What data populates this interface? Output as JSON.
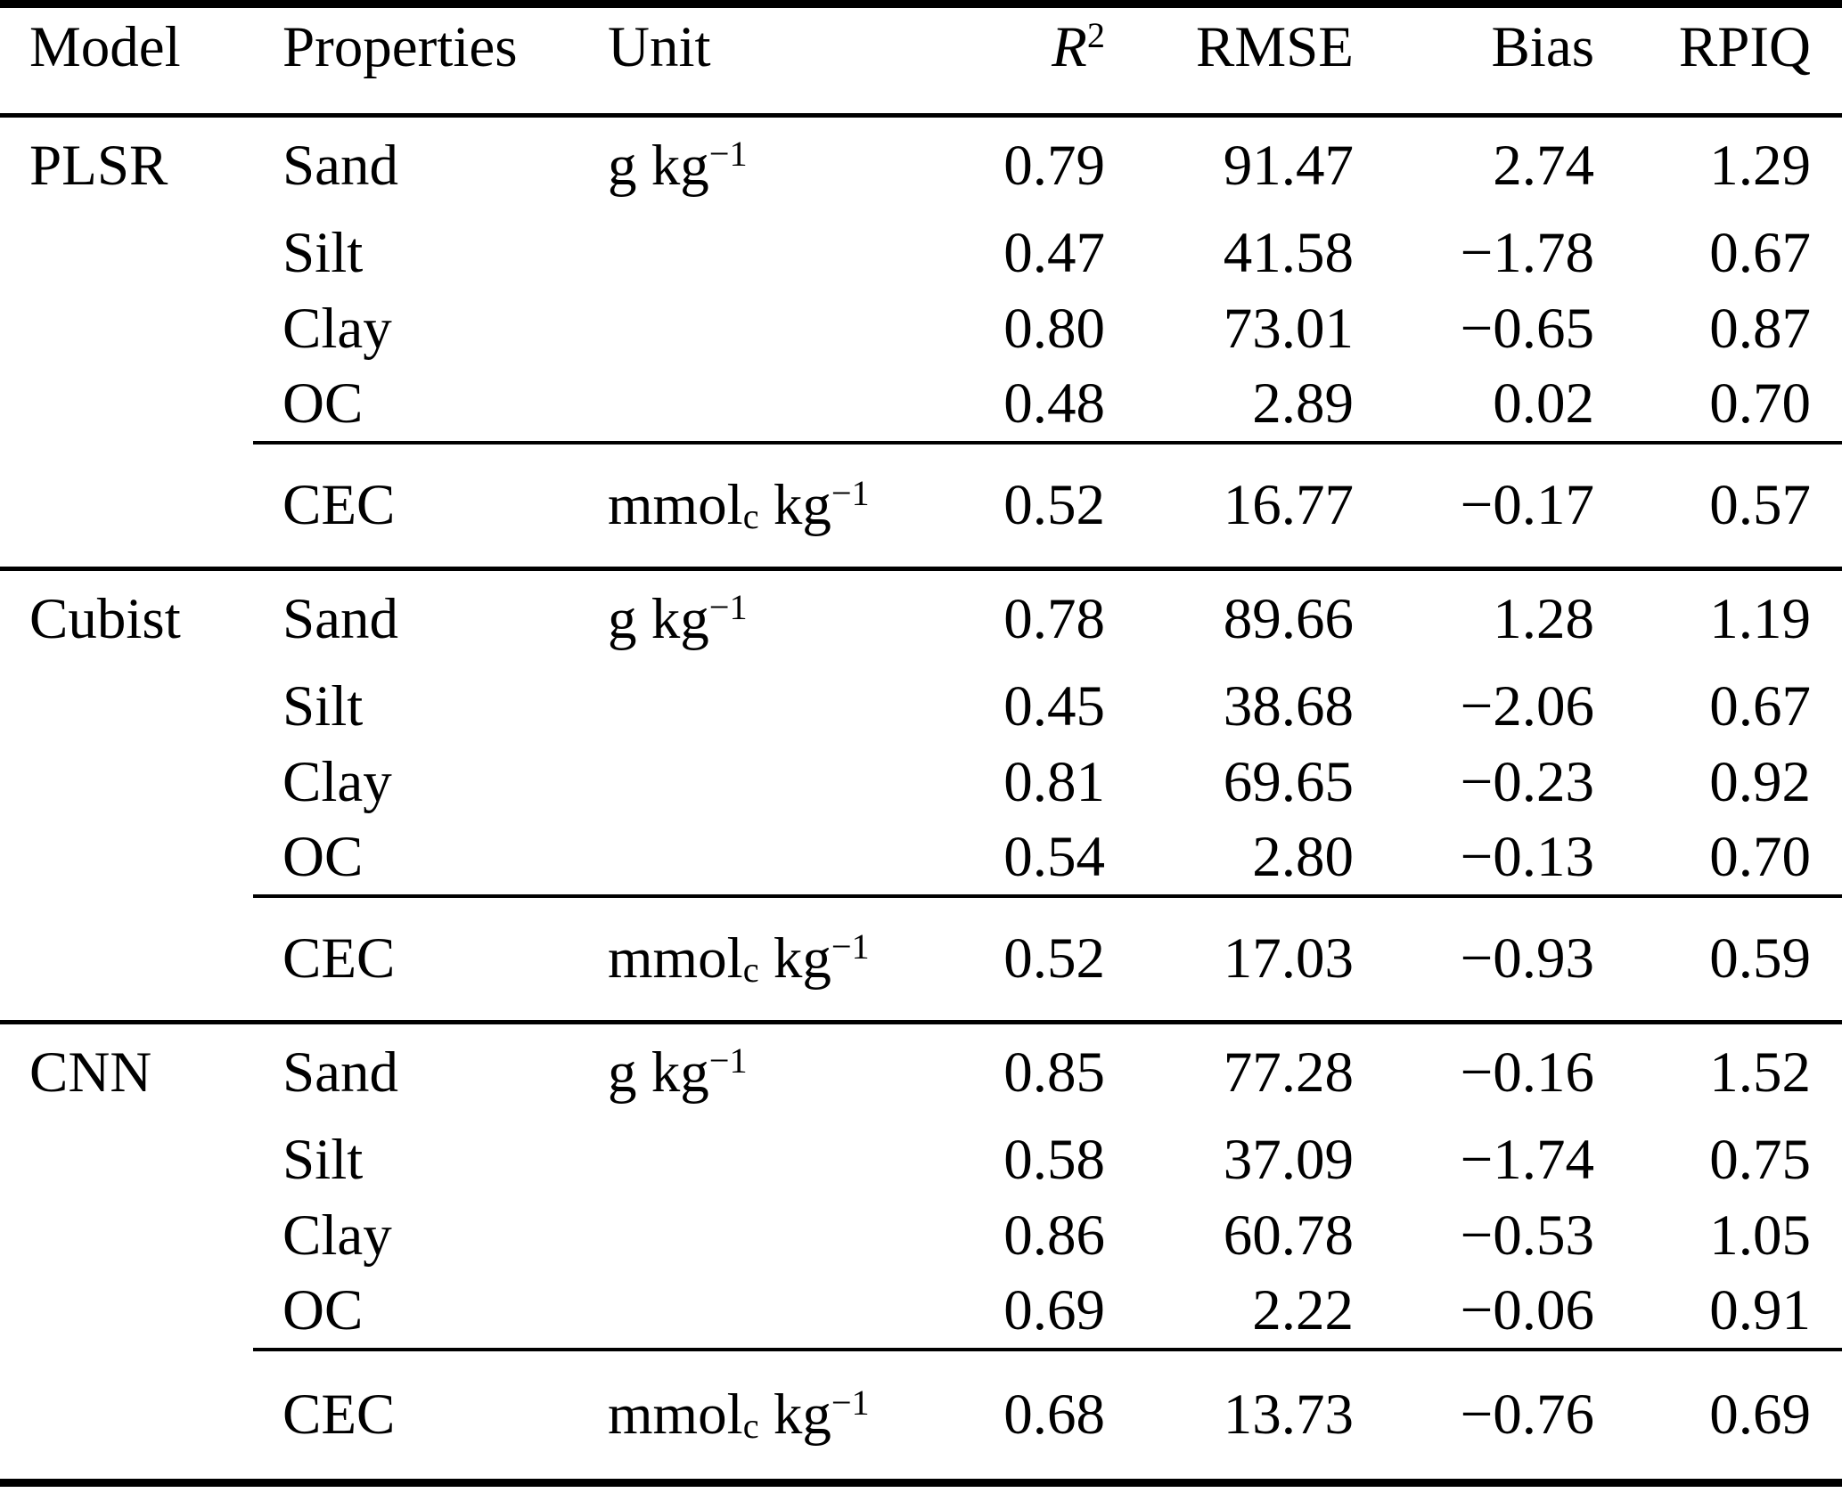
{
  "table": {
    "columns": [
      "Model",
      "Properties",
      "Unit",
      "*R*^{2}",
      "RMSE",
      "Bias",
      "RPIQ"
    ],
    "sections": [
      {
        "model": "PLSR",
        "main_unit": "g kg^{−1}",
        "rows": [
          {
            "property": "Sand",
            "r2": "0.79",
            "rmse": "91.47",
            "bias": "2.74",
            "rpiq": "1.29"
          },
          {
            "property": "Silt",
            "r2": "0.47",
            "rmse": "41.58",
            "bias": "−1.78",
            "rpiq": "0.67"
          },
          {
            "property": "Clay",
            "r2": "0.80",
            "rmse": "73.01",
            "bias": "−0.65",
            "rpiq": "0.87"
          },
          {
            "property": "OC",
            "r2": "0.48",
            "rmse": "2.89",
            "bias": "0.02",
            "rpiq": "0.70"
          }
        ],
        "cec": {
          "property": "CEC",
          "unit": "mmol_{c} kg^{−1}",
          "r2": "0.52",
          "rmse": "16.77",
          "bias": "−0.17",
          "rpiq": "0.57"
        }
      },
      {
        "model": "Cubist",
        "main_unit": "g kg^{−1}",
        "rows": [
          {
            "property": "Sand",
            "r2": "0.78",
            "rmse": "89.66",
            "bias": "1.28",
            "rpiq": "1.19"
          },
          {
            "property": "Silt",
            "r2": "0.45",
            "rmse": "38.68",
            "bias": "−2.06",
            "rpiq": "0.67"
          },
          {
            "property": "Clay",
            "r2": "0.81",
            "rmse": "69.65",
            "bias": "−0.23",
            "rpiq": "0.92"
          },
          {
            "property": "OC",
            "r2": "0.54",
            "rmse": "2.80",
            "bias": "−0.13",
            "rpiq": "0.70"
          }
        ],
        "cec": {
          "property": "CEC",
          "unit": "mmol_{c} kg^{−1}",
          "r2": "0.52",
          "rmse": "17.03",
          "bias": "−0.93",
          "rpiq": "0.59"
        }
      },
      {
        "model": "CNN",
        "main_unit": "g kg^{−1}",
        "rows": [
          {
            "property": "Sand",
            "r2": "0.85",
            "rmse": "77.28",
            "bias": "−0.16",
            "rpiq": "1.52"
          },
          {
            "property": "Silt",
            "r2": "0.58",
            "rmse": "37.09",
            "bias": "−1.74",
            "rpiq": "0.75"
          },
          {
            "property": "Clay",
            "r2": "0.86",
            "rmse": "60.78",
            "bias": "−0.53",
            "rpiq": "1.05"
          },
          {
            "property": "OC",
            "r2": "0.69",
            "rmse": "2.22",
            "bias": "−0.06",
            "rpiq": "0.91"
          }
        ],
        "cec": {
          "property": "CEC",
          "unit": "mmol_{c} kg^{−1}",
          "r2": "0.68",
          "rmse": "13.73",
          "bias": "−0.76",
          "rpiq": "0.69"
        }
      }
    ]
  }
}
